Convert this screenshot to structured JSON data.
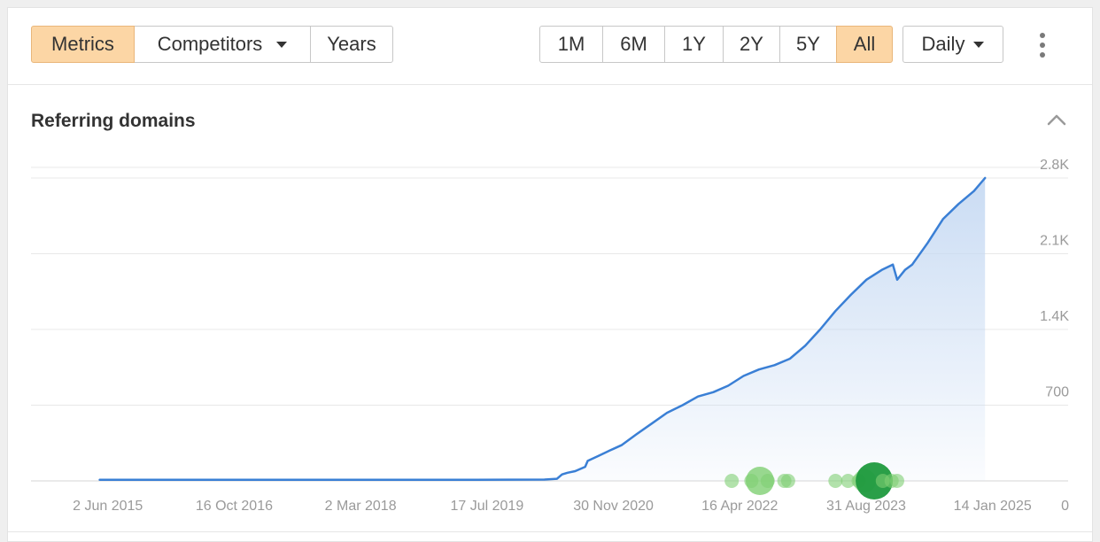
{
  "toolbar": {
    "view_tabs": [
      {
        "label": "Metrics",
        "active": true
      },
      {
        "label": "Competitors",
        "active": false,
        "has_dropdown": true
      },
      {
        "label": "Years",
        "active": false
      }
    ],
    "ranges": [
      {
        "label": "1M",
        "active": false
      },
      {
        "label": "6M",
        "active": false
      },
      {
        "label": "1Y",
        "active": false
      },
      {
        "label": "2Y",
        "active": false
      },
      {
        "label": "5Y",
        "active": false
      },
      {
        "label": "All",
        "active": true
      }
    ],
    "granularity": {
      "label": "Daily",
      "has_dropdown": true
    },
    "more_icon": "kebab-vertical-icon"
  },
  "section": {
    "title": "Referring domains",
    "collapse_icon": "chevron-up-icon"
  },
  "colors": {
    "accent": "#fcd6a5",
    "line": "#3a7fd5",
    "area_top": "#c7daf3",
    "event_light": "#7fcf73",
    "event_dark": "#1f9a3e"
  },
  "chart_data": {
    "type": "area",
    "title": "Referring domains",
    "x_type": "date",
    "xlim": [
      "2014-08-01",
      "2025-11-10"
    ],
    "ylim": [
      0,
      2800
    ],
    "yticks": [
      0,
      700,
      1400,
      2100,
      2800
    ],
    "ytick_labels": [
      "0",
      "700",
      "1.4K",
      "2.1K",
      "2.8K"
    ],
    "xticks": [
      "2015-06-02",
      "2016-10-16",
      "2018-03-02",
      "2019-07-17",
      "2020-11-30",
      "2022-04-16",
      "2023-08-31",
      "2025-01-14"
    ],
    "xtick_labels": [
      "2 Jun 2015",
      "16 Oct 2016",
      "2 Mar 2018",
      "17 Jul 2019",
      "30 Nov 2020",
      "16 Apr 2022",
      "31 Aug 2023",
      "14 Jan 2025"
    ],
    "grid": true,
    "y_axis_side": "right",
    "series": [
      {
        "x": [
          "2015-05-01",
          "2016-06-01",
          "2017-06-01",
          "2018-06-01",
          "2019-06-01",
          "2020-03-01",
          "2020-04-20",
          "2020-05-10",
          "2020-06-01",
          "2020-07-01",
          "2020-08-10",
          "2020-08-20",
          "2020-10-01",
          "2020-11-15",
          "2021-01-01",
          "2021-03-01",
          "2021-05-01",
          "2021-07-01",
          "2021-09-01",
          "2021-11-01",
          "2022-01-01",
          "2022-03-01",
          "2022-05-01",
          "2022-07-01",
          "2022-09-01",
          "2022-11-01",
          "2023-01-01",
          "2023-03-01",
          "2023-05-01",
          "2023-07-01",
          "2023-09-01",
          "2023-11-01",
          "2023-12-15",
          "2024-01-01",
          "2024-02-01",
          "2024-03-01",
          "2024-05-01",
          "2024-07-01",
          "2024-09-01",
          "2024-11-01",
          "2024-12-15"
        ],
        "y": [
          10,
          10,
          10,
          10,
          10,
          12,
          20,
          60,
          75,
          90,
          130,
          185,
          230,
          280,
          330,
          430,
          530,
          630,
          700,
          780,
          820,
          880,
          970,
          1030,
          1070,
          1130,
          1250,
          1400,
          1570,
          1720,
          1860,
          1950,
          2000,
          1860,
          1950,
          2000,
          2200,
          2420,
          2560,
          2680,
          2800
        ]
      }
    ],
    "events": [
      {
        "date": "2022-03-15",
        "size": "small"
      },
      {
        "date": "2022-06-01",
        "size": "small"
      },
      {
        "date": "2022-07-05",
        "size": "large"
      },
      {
        "date": "2022-08-05",
        "size": "small"
      },
      {
        "date": "2022-10-10",
        "size": "small"
      },
      {
        "date": "2022-10-25",
        "size": "small"
      },
      {
        "date": "2023-05-01",
        "size": "small"
      },
      {
        "date": "2023-06-20",
        "size": "small"
      },
      {
        "date": "2023-08-01",
        "size": "small"
      },
      {
        "date": "2023-08-25",
        "size": "medium"
      },
      {
        "date": "2023-10-02",
        "size": "xlarge"
      },
      {
        "date": "2023-11-05",
        "size": "small"
      },
      {
        "date": "2023-12-10",
        "size": "small"
      },
      {
        "date": "2024-01-01",
        "size": "small"
      }
    ]
  }
}
